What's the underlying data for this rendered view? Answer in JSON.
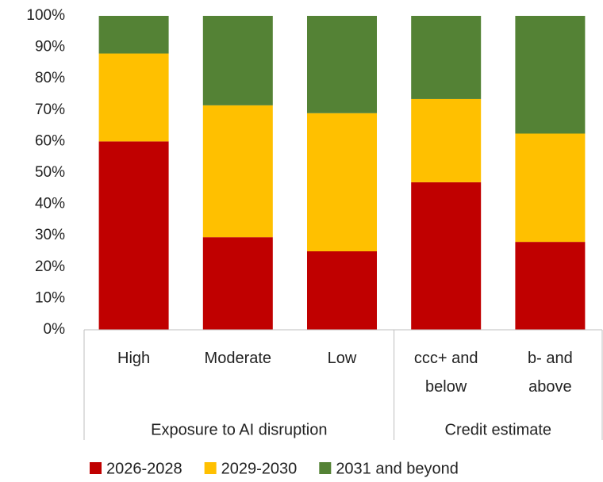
{
  "chart_data": {
    "type": "stacked_bar",
    "categories": [
      "High",
      "Moderate",
      "Low",
      "ccc+ and below",
      "b- and above"
    ],
    "groups": [
      {
        "name": "Exposure to AI disruption",
        "span": 3
      },
      {
        "name": "Credit estimate",
        "span": 2
      }
    ],
    "series": [
      {
        "name": "2026-2028",
        "color": "#c00000",
        "values": [
          60,
          29.5,
          25,
          47,
          28
        ]
      },
      {
        "name": "2029-2030",
        "color": "#ffc000",
        "values": [
          28,
          42,
          44,
          26.5,
          34.5
        ]
      },
      {
        "name": "2031 and beyond",
        "color": "#548235",
        "values": [
          12,
          28.5,
          31,
          26.5,
          37.5
        ]
      }
    ],
    "ylim": [
      0,
      100
    ],
    "yticks": [
      {
        "value": 0,
        "label": "0%"
      },
      {
        "value": 10,
        "label": "10%"
      },
      {
        "value": 20,
        "label": "20%"
      },
      {
        "value": 30,
        "label": "30%"
      },
      {
        "value": 40,
        "label": "40%"
      },
      {
        "value": 50,
        "label": "50%"
      },
      {
        "value": 60,
        "label": "60%"
      },
      {
        "value": 70,
        "label": "70%"
      },
      {
        "value": 80,
        "label": "80%"
      },
      {
        "value": 90,
        "label": "90%"
      },
      {
        "value": 100,
        "label": "100%"
      }
    ],
    "grid": false,
    "legend": "bottom"
  }
}
